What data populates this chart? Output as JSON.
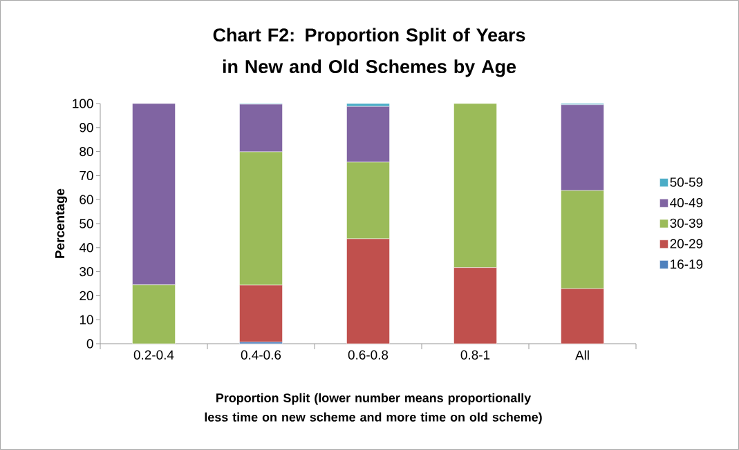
{
  "chart_data": {
    "type": "bar",
    "stacked": true,
    "title": "Chart F2: Proportion Split of Years in New and Old Schemes by Age",
    "xlabel": "Proportion Split (lower number means proportionally less time on new scheme and more time on old scheme)",
    "ylabel": "Percentage",
    "categories": [
      "0.2-0.4",
      "0.4-0.6",
      "0.6-0.8",
      "0.8-1",
      "All"
    ],
    "series": [
      {
        "name": "16-19",
        "color": "#4f81bd",
        "values": [
          0,
          0.7,
          0,
          0,
          0
        ]
      },
      {
        "name": "20-29",
        "color": "#c0504d",
        "values": [
          0,
          23.7,
          43.7,
          31.7,
          22.9
        ]
      },
      {
        "name": "30-39",
        "color": "#9bbb59",
        "values": [
          24.5,
          55.5,
          31.9,
          68.3,
          40.9
        ]
      },
      {
        "name": "40-49",
        "color": "#8064a2",
        "values": [
          75.5,
          19.8,
          23.2,
          0,
          35.7
        ]
      },
      {
        "name": "50-59",
        "color": "#4bacc6",
        "values": [
          0,
          0.3,
          1.2,
          0,
          0.5
        ]
      }
    ],
    "ylim": [
      0,
      100
    ],
    "yticks": [
      0,
      10,
      20,
      30,
      40,
      50,
      60,
      70,
      80,
      90,
      100
    ],
    "legend": "right",
    "grid": false
  }
}
